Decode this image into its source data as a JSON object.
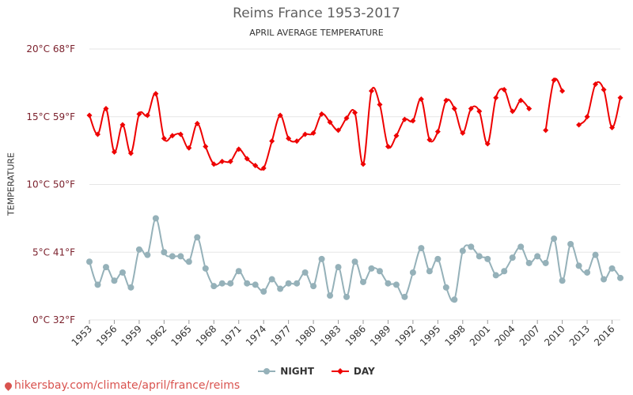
{
  "title": "Reims France 1953-2017",
  "subtitle": "APRIL AVERAGE TEMPERATURE",
  "ylabel": "TEMPERATURE",
  "footer": "hikersbay.com/climate/april/france/reims",
  "colors": {
    "night": "#95b1b9",
    "day": "#ee0000",
    "grid": "#e6e6e6",
    "tick": "#7a1f2b"
  },
  "chart_data": {
    "type": "line",
    "title": "Reims France 1953-2017",
    "subtitle": "APRIL AVERAGE TEMPERATURE",
    "ylabel": "TEMPERATURE",
    "ylim": [
      0,
      20
    ],
    "yticks": [
      {
        "value": 0,
        "label": "0°C 32°F"
      },
      {
        "value": 5,
        "label": "5°C 41°F"
      },
      {
        "value": 10,
        "label": "10°C 50°F"
      },
      {
        "value": 15,
        "label": "15°C 59°F"
      },
      {
        "value": 20,
        "label": "20°C 68°F"
      }
    ],
    "xlim": [
      1953,
      2017
    ],
    "xticks": [
      1953,
      1956,
      1959,
      1962,
      1965,
      1968,
      1971,
      1974,
      1977,
      1980,
      1983,
      1986,
      1989,
      1992,
      1995,
      1998,
      2001,
      2004,
      2007,
      2010,
      2013,
      2016
    ],
    "legend_position": "bottom",
    "series": [
      {
        "name": "NIGHT",
        "color": "#95b1b9",
        "marker": "circle",
        "values": [
          [
            1953,
            4.3
          ],
          [
            1954,
            2.6
          ],
          [
            1955,
            3.9
          ],
          [
            1956,
            2.9
          ],
          [
            1957,
            3.5
          ],
          [
            1958,
            2.4
          ],
          [
            1959,
            5.2
          ],
          [
            1960,
            4.8
          ],
          [
            1961,
            7.5
          ],
          [
            1962,
            5.0
          ],
          [
            1963,
            4.7
          ],
          [
            1964,
            4.7
          ],
          [
            1965,
            4.3
          ],
          [
            1966,
            6.1
          ],
          [
            1967,
            3.8
          ],
          [
            1968,
            2.5
          ],
          [
            1969,
            2.7
          ],
          [
            1970,
            2.7
          ],
          [
            1971,
            3.6
          ],
          [
            1972,
            2.7
          ],
          [
            1973,
            2.6
          ],
          [
            1974,
            2.1
          ],
          [
            1975,
            3.0
          ],
          [
            1976,
            2.3
          ],
          [
            1977,
            2.7
          ],
          [
            1978,
            2.7
          ],
          [
            1979,
            3.5
          ],
          [
            1980,
            2.5
          ],
          [
            1981,
            4.5
          ],
          [
            1982,
            1.8
          ],
          [
            1983,
            3.9
          ],
          [
            1984,
            1.7
          ],
          [
            1985,
            4.3
          ],
          [
            1986,
            2.8
          ],
          [
            1987,
            3.8
          ],
          [
            1988,
            3.6
          ],
          [
            1989,
            2.7
          ],
          [
            1990,
            2.6
          ],
          [
            1991,
            1.7
          ],
          [
            1992,
            3.5
          ],
          [
            1993,
            5.3
          ],
          [
            1994,
            3.6
          ],
          [
            1995,
            4.5
          ],
          [
            1996,
            2.4
          ],
          [
            1997,
            1.5
          ],
          [
            1998,
            5.1
          ],
          [
            1999,
            5.4
          ],
          [
            2000,
            4.7
          ],
          [
            2001,
            4.5
          ],
          [
            2002,
            3.3
          ],
          [
            2003,
            3.6
          ],
          [
            2004,
            4.6
          ],
          [
            2005,
            5.4
          ],
          [
            2006,
            4.2
          ],
          [
            2007,
            4.7
          ],
          [
            2008,
            4.2
          ],
          [
            2009,
            6.0
          ],
          [
            2010,
            2.9
          ],
          [
            2011,
            5.6
          ],
          [
            2012,
            4.0
          ],
          [
            2013,
            3.5
          ],
          [
            2014,
            4.8
          ],
          [
            2015,
            3.0
          ],
          [
            2016,
            3.8
          ],
          [
            2017,
            3.1
          ]
        ]
      },
      {
        "name": "DAY",
        "color": "#ee0000",
        "marker": "diamond",
        "values": [
          [
            1953,
            15.1
          ],
          [
            1954,
            13.7
          ],
          [
            1955,
            15.6
          ],
          [
            1956,
            12.4
          ],
          [
            1957,
            14.4
          ],
          [
            1958,
            12.3
          ],
          [
            1959,
            15.2
          ],
          [
            1960,
            15.1
          ],
          [
            1961,
            16.7
          ],
          [
            1962,
            13.4
          ],
          [
            1963,
            13.6
          ],
          [
            1964,
            13.7
          ],
          [
            1965,
            12.7
          ],
          [
            1966,
            14.5
          ],
          [
            1967,
            12.8
          ],
          [
            1968,
            11.5
          ],
          [
            1969,
            11.7
          ],
          [
            1970,
            11.7
          ],
          [
            1971,
            12.6
          ],
          [
            1972,
            11.9
          ],
          [
            1973,
            11.4
          ],
          [
            1974,
            11.2
          ],
          [
            1975,
            13.2
          ],
          [
            1976,
            15.1
          ],
          [
            1977,
            13.4
          ],
          [
            1978,
            13.2
          ],
          [
            1979,
            13.7
          ],
          [
            1980,
            13.8
          ],
          [
            1981,
            15.2
          ],
          [
            1982,
            14.6
          ],
          [
            1983,
            14.0
          ],
          [
            1984,
            14.9
          ],
          [
            1985,
            15.3
          ],
          [
            1986,
            11.5
          ],
          [
            1987,
            16.9
          ],
          [
            1988,
            15.9
          ],
          [
            1989,
            12.8
          ],
          [
            1990,
            13.6
          ],
          [
            1991,
            14.8
          ],
          [
            1992,
            14.7
          ],
          [
            1993,
            16.3
          ],
          [
            1994,
            13.3
          ],
          [
            1995,
            13.9
          ],
          [
            1996,
            16.2
          ],
          [
            1997,
            15.6
          ],
          [
            1998,
            13.8
          ],
          [
            1999,
            15.6
          ],
          [
            2000,
            15.4
          ],
          [
            2001,
            13.0
          ],
          [
            2002,
            16.4
          ],
          [
            2003,
            17.0
          ],
          [
            2004,
            15.4
          ],
          [
            2005,
            16.2
          ],
          [
            2006,
            15.6
          ],
          [
            2008,
            14.0
          ],
          [
            2009,
            17.7
          ],
          [
            2010,
            16.9
          ],
          [
            2012,
            14.4
          ],
          [
            2013,
            15.0
          ],
          [
            2014,
            17.4
          ],
          [
            2015,
            17.0
          ],
          [
            2016,
            14.2
          ],
          [
            2017,
            16.4
          ]
        ]
      }
    ]
  }
}
